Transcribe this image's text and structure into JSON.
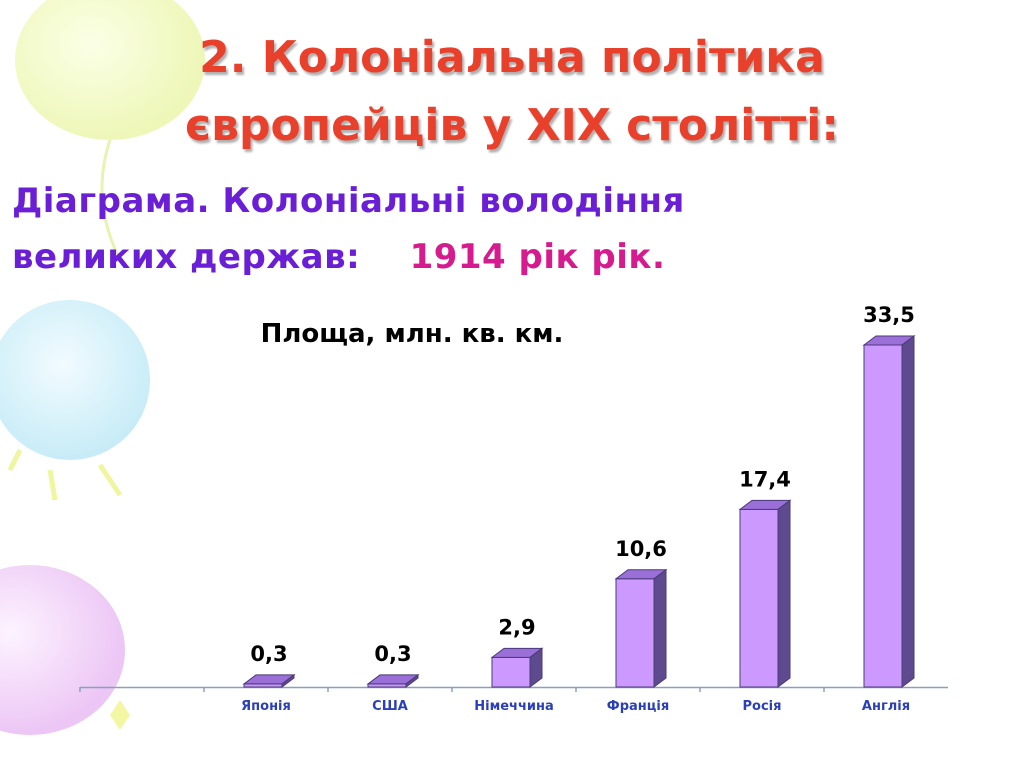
{
  "slide": {
    "title_line1": "2. Колоніальна політика",
    "title_line2": "європейців у XIX столітті:",
    "subtitle_line1": "Діаграма. Колоніальні володіння",
    "subtitle_line2_prefix": "великих держав:    ",
    "subtitle_line2_year": "1914 рік рік."
  },
  "colors": {
    "title": "#e8402a",
    "subtitle": "#6a1fd6",
    "year": "#d61b8f",
    "bar_front": "#cc99ff",
    "bar_top": "#9b6fd8",
    "bar_side": "#5e4a8e",
    "tick_label": "#2b3fb8"
  },
  "chart_data": {
    "type": "bar",
    "title": "Площа, млн. кв. км.",
    "categories": [
      "",
      "Японія",
      "США",
      "Німеччина",
      "Франція",
      "Росія",
      "Англія"
    ],
    "values": [
      null,
      0.3,
      0.3,
      2.9,
      10.6,
      17.4,
      33.5
    ],
    "data_labels": [
      "",
      "0,3",
      "0,3",
      "2,9",
      "10,6",
      "17,4",
      "33,5"
    ],
    "ylim": [
      0,
      33.5
    ],
    "grid": false,
    "legend": "none"
  }
}
